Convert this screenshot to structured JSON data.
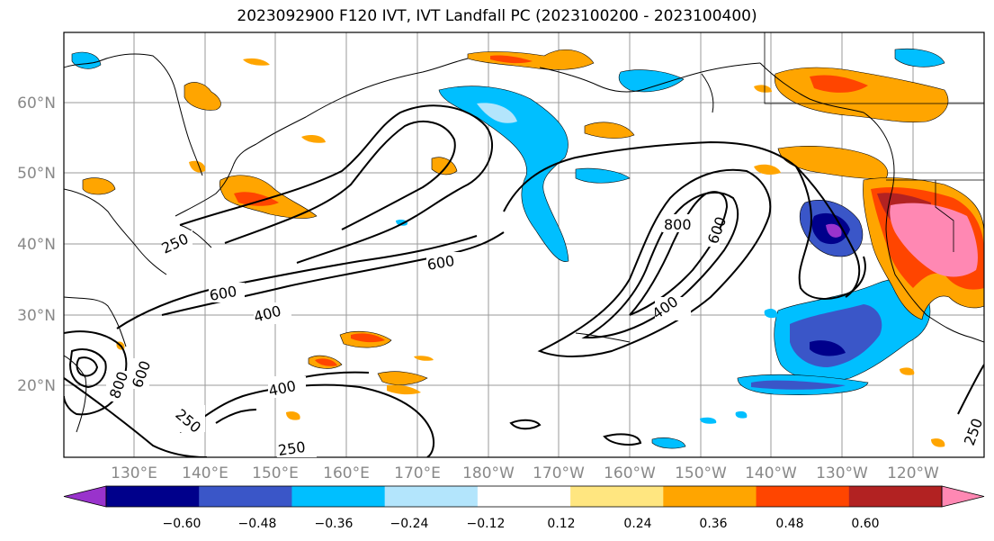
{
  "title": "2023092900 F120 IVT, IVT Landfall PC (2023100200 - 2023100400)",
  "map": {
    "lat_labels": [
      "60°N",
      "50°N",
      "40°N",
      "30°N",
      "20°N"
    ],
    "lon_labels": [
      "130°E",
      "140°E",
      "150°E",
      "160°E",
      "170°E",
      "180°W",
      "170°W",
      "160°W",
      "150°W",
      "140°W",
      "130°W",
      "120°W"
    ],
    "contour_labels": [
      "800",
      "600",
      "600",
      "400",
      "250",
      "600",
      "400",
      "400",
      "250",
      "250",
      "800",
      "600",
      "250"
    ]
  },
  "colorbar": {
    "colors": [
      "#9933cc",
      "#00008b",
      "#3a56c8",
      "#00bfff",
      "#b3e5fc",
      "#ffffff",
      "#ffe680",
      "#ffa500",
      "#ff4500",
      "#b22222",
      "#ff88b3"
    ],
    "tick_labels": [
      "−0.60",
      "−0.48",
      "−0.36",
      "−0.24",
      "−0.12",
      "0.12",
      "0.24",
      "0.36",
      "0.48",
      "0.60"
    ]
  }
}
